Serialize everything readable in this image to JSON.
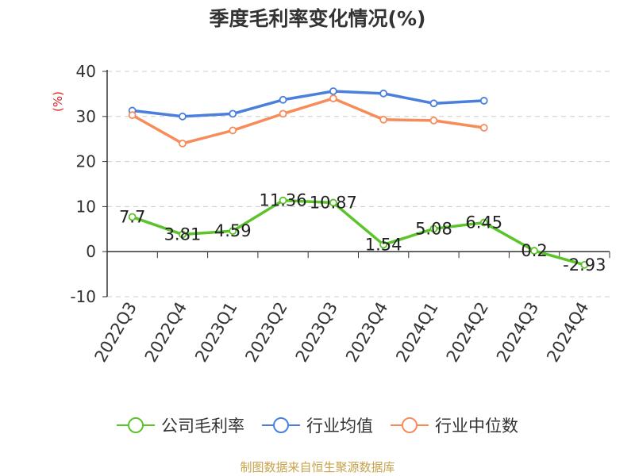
{
  "chart_data": {
    "type": "line",
    "title": "季度毛利率变化情况(%)",
    "ylabel": "(%)",
    "categories": [
      "2022Q3",
      "2022Q4",
      "2023Q1",
      "2023Q2",
      "2023Q3",
      "2023Q4",
      "2024Q1",
      "2024Q2",
      "2024Q3",
      "2024Q4"
    ],
    "ylim": [
      -10,
      40
    ],
    "yticks": [
      -10,
      0,
      10,
      20,
      30,
      40
    ],
    "grid": true,
    "legend_position": "bottom",
    "series": [
      {
        "name": "公司毛利率",
        "color": "#5ac42a",
        "show_labels": true,
        "values": [
          7.7,
          3.81,
          4.59,
          11.36,
          10.87,
          1.54,
          5.08,
          6.45,
          0.2,
          -2.93
        ],
        "labels": [
          "7.7",
          "3.81",
          "4.59",
          "11.36",
          "10.87",
          "1.54",
          "5.08",
          "6.45",
          "0.2",
          "-2.93"
        ]
      },
      {
        "name": "行业均值",
        "color": "#4a7fdc",
        "show_labels": false,
        "values": [
          31.3,
          30.0,
          30.6,
          33.7,
          35.6,
          35.1,
          32.9,
          33.5,
          null,
          null
        ]
      },
      {
        "name": "行业中位数",
        "color": "#f78c5a",
        "show_labels": false,
        "values": [
          30.3,
          24.0,
          26.9,
          30.6,
          34.0,
          29.3,
          29.1,
          27.5,
          null,
          null
        ]
      }
    ]
  },
  "source_note": "制图数据来自恒生聚源数据库"
}
